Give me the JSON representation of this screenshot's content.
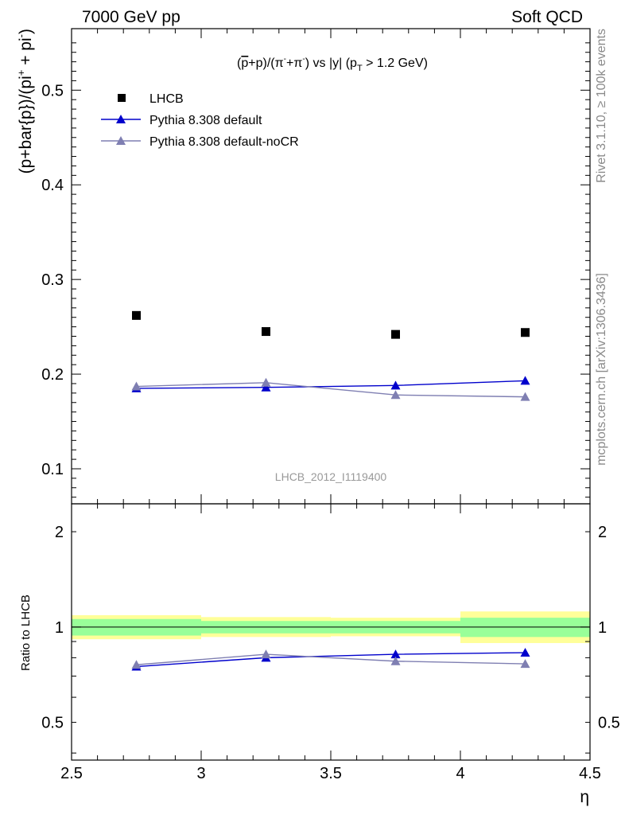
{
  "header": {
    "left": "7000 GeV pp",
    "right": "Soft QCD"
  },
  "side_labels": {
    "rivet": "Rivet 3.1.10, ≥ 100k events",
    "mcplots": "mcplots.cern.ch [arXiv:1306.3436]"
  },
  "watermark": "LHCB_2012_I1119400",
  "chart_data": [
    {
      "type": "scatter",
      "title_parts": {
        "p1": "(",
        "p2": "p",
        "p3": "+p)/(π",
        "p4": "-",
        "p5": "+π",
        "p6": "-",
        "p7": ") vs |y| (p",
        "p8": "T",
        "p9": " > 1.2 GeV)"
      },
      "ylabel_parts": {
        "a": "(p+bar{p})/(pi",
        "b": "+",
        "c": " + pi",
        "d": "-",
        "e": ")"
      },
      "xlim": [
        2.5,
        4.5
      ],
      "ylim": [
        0.063,
        0.565
      ],
      "yticks": [
        {
          "value": 0.1,
          "label": "0.1"
        },
        {
          "value": 0.2,
          "label": "0.2"
        },
        {
          "value": 0.3,
          "label": "0.3"
        },
        {
          "value": 0.4,
          "label": "0.4"
        },
        {
          "value": 0.5,
          "label": "0.5"
        }
      ],
      "legend_position": "top-left",
      "series": [
        {
          "name": "LHCB",
          "color": "#000000",
          "marker": "square",
          "x": [
            2.75,
            3.25,
            3.75,
            4.25
          ],
          "y": [
            0.262,
            0.245,
            0.242,
            0.244
          ],
          "yerr": [
            0.002,
            0.002,
            0.002,
            0.002
          ]
        },
        {
          "name": "Pythia 8.308 default",
          "color": "#0000cc",
          "marker": "triangle",
          "x": [
            2.75,
            3.25,
            3.75,
            4.25
          ],
          "y": [
            0.185,
            0.186,
            0.188,
            0.193
          ],
          "yerr": [
            0.003,
            0.003,
            0.004,
            0.004
          ]
        },
        {
          "name": "Pythia 8.308 default-noCR",
          "color": "#7f7fb2",
          "marker": "triangle",
          "x": [
            2.75,
            3.25,
            3.75,
            4.25
          ],
          "y": [
            0.187,
            0.191,
            0.178,
            0.176
          ],
          "yerr": [
            0.003,
            0.004,
            0.003,
            0.003
          ]
        }
      ]
    },
    {
      "type": "scatter",
      "ylabel": "Ratio to LHCB",
      "xlabel": "η",
      "xlim": [
        2.5,
        4.5
      ],
      "ylim": [
        0.38,
        2.45
      ],
      "log_y": true,
      "xticks": [
        {
          "value": 2.5,
          "label": "2.5"
        },
        {
          "value": 3.0,
          "label": "3"
        },
        {
          "value": 3.5,
          "label": "3.5"
        },
        {
          "value": 4.0,
          "label": "4"
        },
        {
          "value": 4.5,
          "label": "4.5"
        }
      ],
      "yticks": [
        {
          "value": 0.5,
          "label": "0.5"
        },
        {
          "value": 1,
          "label": "1"
        },
        {
          "value": 2,
          "label": "2"
        }
      ],
      "bands": [
        {
          "x0": 2.5,
          "x1": 3.0,
          "inner": [
            0.94,
            1.06
          ],
          "outer": [
            0.915,
            1.09
          ]
        },
        {
          "x0": 3.0,
          "x1": 3.5,
          "inner": [
            0.955,
            1.045
          ],
          "outer": [
            0.93,
            1.075
          ]
        },
        {
          "x0": 3.5,
          "x1": 4.0,
          "inner": [
            0.955,
            1.045
          ],
          "outer": [
            0.935,
            1.07
          ]
        },
        {
          "x0": 4.0,
          "x1": 4.5,
          "inner": [
            0.93,
            1.07
          ],
          "outer": [
            0.89,
            1.12
          ]
        }
      ],
      "band_colors": {
        "inner": "#99ff99",
        "outer": "#ffff99"
      },
      "series": [
        {
          "name": "Pythia 8.308 default",
          "color": "#0000cc",
          "x": [
            2.75,
            3.25,
            3.75,
            4.25
          ],
          "y": [
            0.75,
            0.8,
            0.82,
            0.83
          ],
          "yerr": [
            0.015,
            0.012,
            0.015,
            0.015
          ]
        },
        {
          "name": "Pythia 8.308 default-noCR",
          "color": "#7f7fb2",
          "x": [
            2.75,
            3.25,
            3.75,
            4.25
          ],
          "y": [
            0.76,
            0.82,
            0.78,
            0.765
          ],
          "yerr": [
            0.015,
            0.015,
            0.012,
            0.015
          ]
        }
      ]
    }
  ]
}
